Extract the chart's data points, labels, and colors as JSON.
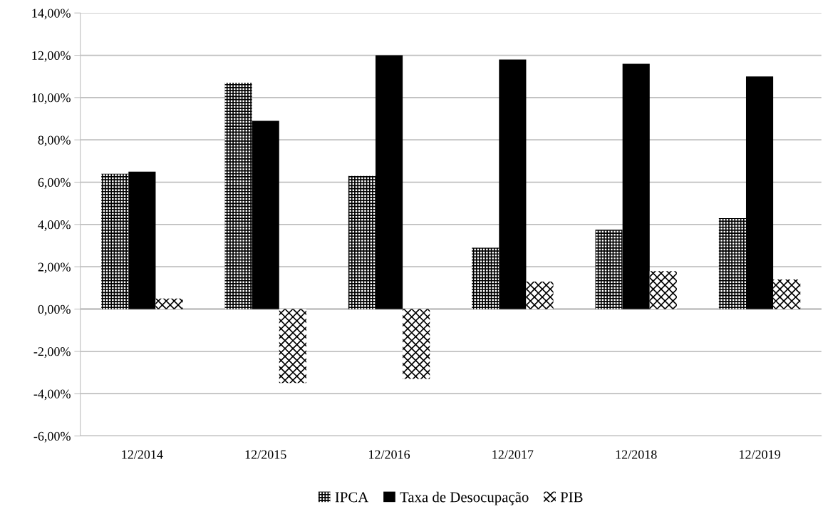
{
  "chart_data": {
    "type": "bar",
    "categories": [
      "12/2014",
      "12/2015",
      "12/2016",
      "12/2017",
      "12/2018",
      "12/2019"
    ],
    "series": [
      {
        "name": "IPCA",
        "color": "#000000",
        "values": [
          6.4,
          10.7,
          6.3,
          2.9,
          3.75,
          4.3
        ]
      },
      {
        "name": "Taxa de Desocupação",
        "color": "#000000",
        "values": [
          6.5,
          8.9,
          12.0,
          11.8,
          11.6,
          11.0
        ]
      },
      {
        "name": "PIB",
        "color": "#000000",
        "values": [
          0.5,
          -3.5,
          -3.3,
          1.3,
          1.8,
          1.4
        ]
      }
    ],
    "ylim": [
      -6,
      14
    ],
    "yticks": [
      {
        "value": -6,
        "label": "-6,00%"
      },
      {
        "value": -4,
        "label": "-4,00%"
      },
      {
        "value": -2,
        "label": "-2,00%"
      },
      {
        "value": 0,
        "label": "0,00%"
      },
      {
        "value": 2,
        "label": "2,00%"
      },
      {
        "value": 4,
        "label": "4,00%"
      },
      {
        "value": 6,
        "label": "6,00%"
      },
      {
        "value": 8,
        "label": "8,00%"
      },
      {
        "value": 10,
        "label": "10,00%"
      },
      {
        "value": 12,
        "label": "12,00%"
      },
      {
        "value": 14,
        "label": "14,00%"
      }
    ],
    "grid": "y",
    "legend": "bottom"
  }
}
